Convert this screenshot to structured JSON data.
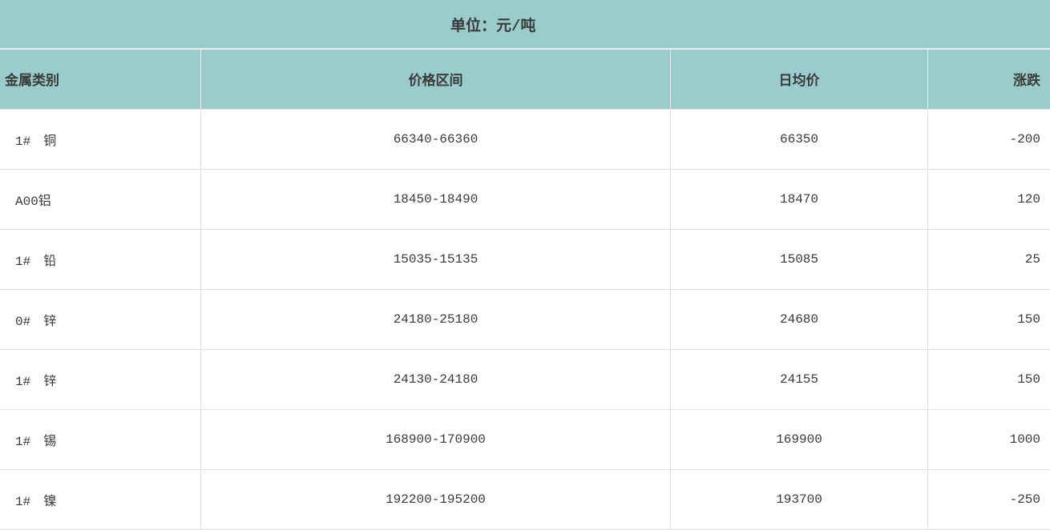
{
  "unit_label": "单位：元/吨",
  "colors": {
    "header_teal": "#9acccb",
    "grid_border": "#e0e0e0",
    "text": "#3a3a3a"
  },
  "table": {
    "columns": [
      {
        "key": "category",
        "label": "金属类别"
      },
      {
        "key": "range",
        "label": "价格区间"
      },
      {
        "key": "avg",
        "label": "日均价"
      },
      {
        "key": "change",
        "label": "涨跌"
      }
    ],
    "rows": [
      {
        "category": "1#　铜",
        "range": "66340-66360",
        "avg": "66350",
        "change": "-200"
      },
      {
        "category": "A00铝",
        "range": "18450-18490",
        "avg": "18470",
        "change": "120"
      },
      {
        "category": "1#　铅",
        "range": "15035-15135",
        "avg": "15085",
        "change": "25"
      },
      {
        "category": "0#　锌",
        "range": "24180-25180",
        "avg": "24680",
        "change": "150"
      },
      {
        "category": "1#　锌",
        "range": "24130-24180",
        "avg": "24155",
        "change": "150"
      },
      {
        "category": "1#　锡",
        "range": "168900-170900",
        "avg": "169900",
        "change": "1000"
      },
      {
        "category": "1#　镍",
        "range": "192200-195200",
        "avg": "193700",
        "change": "-250"
      }
    ]
  },
  "chart_data": {
    "type": "table",
    "title": "单位：元/吨",
    "columns": [
      "金属类别",
      "价格区间",
      "日均价",
      "涨跌"
    ],
    "rows": [
      [
        "1# 铜",
        "66340-66360",
        66350,
        -200
      ],
      [
        "A00铝",
        "18450-18490",
        18470,
        120
      ],
      [
        "1# 铅",
        "15035-15135",
        15085,
        25
      ],
      [
        "0# 锌",
        "24180-25180",
        24680,
        150
      ],
      [
        "1# 锌",
        "24130-24180",
        24155,
        150
      ],
      [
        "1# 锡",
        "168900-170900",
        169900,
        1000
      ],
      [
        "1# 镍",
        "192200-195200",
        193700,
        -250
      ]
    ]
  }
}
